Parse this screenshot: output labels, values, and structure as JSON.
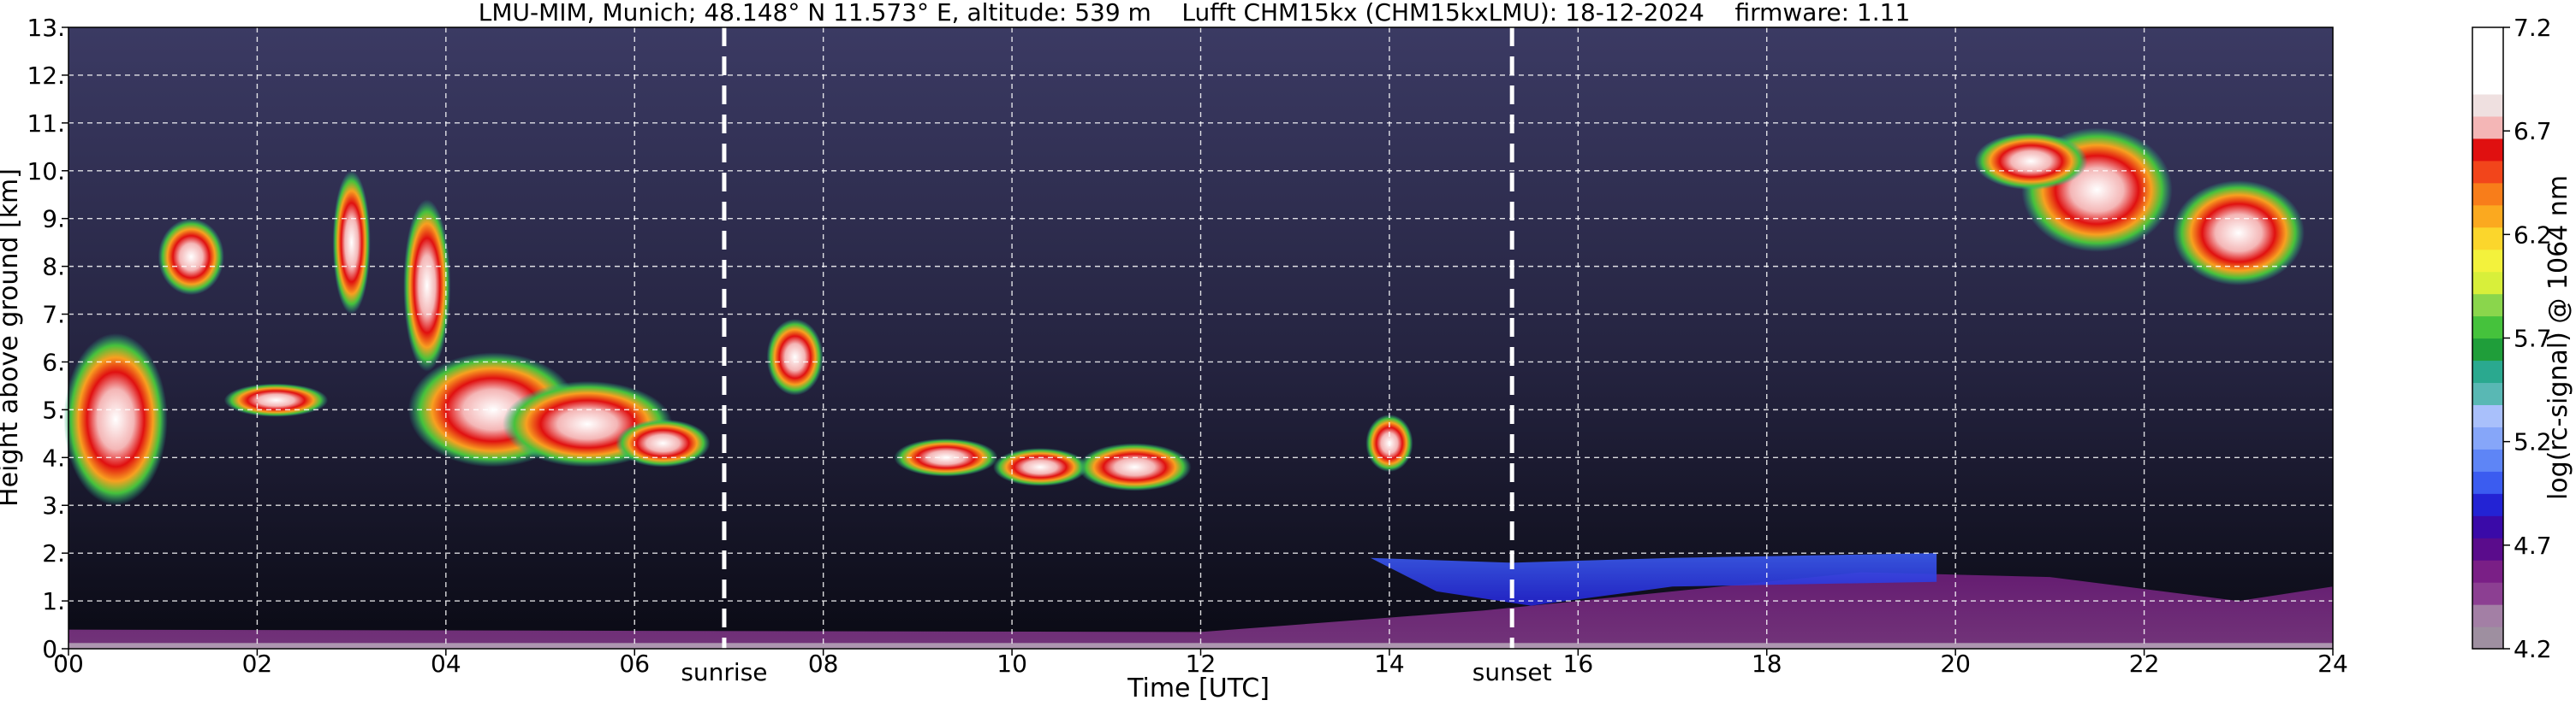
{
  "chart_data": {
    "type": "heatmap",
    "title": "LMU-MIM, Munich; 48.148° N 11.573° E, altitude: 539 m    Lufft CHM15kx (CHM15kxLMU): 18-12-2024    firmware: 1.11",
    "xlabel": "Time [UTC]",
    "ylabel": "Height above ground [km]",
    "xlim": [
      0,
      24
    ],
    "ylim": [
      0,
      13
    ],
    "x_ticks": [
      0,
      2,
      4,
      6,
      8,
      10,
      12,
      14,
      16,
      18,
      20,
      22,
      24
    ],
    "x_tick_labels": [
      "00",
      "02",
      "04",
      "06",
      "08",
      "10",
      "12",
      "14",
      "16",
      "18",
      "20",
      "22",
      "24"
    ],
    "y_ticks": [
      0,
      1,
      2,
      3,
      4,
      5,
      6,
      7,
      8,
      9,
      10,
      11,
      12,
      13
    ],
    "y_tick_labels": [
      "0.",
      "1.",
      "2.",
      "3.",
      "4.",
      "5.",
      "6.",
      "7.",
      "8.",
      "9.",
      "10.",
      "11.",
      "12.",
      "13."
    ],
    "grid": true,
    "colorbar": {
      "label": "log(rc-signal) @ 1064 nm",
      "range": [
        4.2,
        7.2
      ],
      "tick_values": [
        4.2,
        4.7,
        5.2,
        5.7,
        6.2,
        6.7,
        7.2
      ],
      "tick_labels": [
        "4.2",
        "4.7",
        "5.2",
        "5.7",
        "6.2",
        "6.7",
        "7.2"
      ],
      "colors": [
        "#9e8fa0",
        "#a37fa5",
        "#8c3f92",
        "#7a1f86",
        "#5a0c8c",
        "#3a0aa8",
        "#2323d4",
        "#3b5cf0",
        "#5e85f6",
        "#86a6f9",
        "#a9c0fb",
        "#59b8b4",
        "#2aa98f",
        "#1f9e3a",
        "#45c23c",
        "#8ad64c",
        "#d8ef3a",
        "#f3f23c",
        "#fbd62c",
        "#fba91f",
        "#f87d1a",
        "#f2451b",
        "#e01010",
        "#f4b6b6",
        "#efe0e0",
        "#ffffff",
        "#ffffff",
        "#ffffff"
      ]
    },
    "vertical_markers": [
      {
        "x": 6.95,
        "label": "sunrise"
      },
      {
        "x": 15.3,
        "label": "sunset"
      }
    ]
  }
}
